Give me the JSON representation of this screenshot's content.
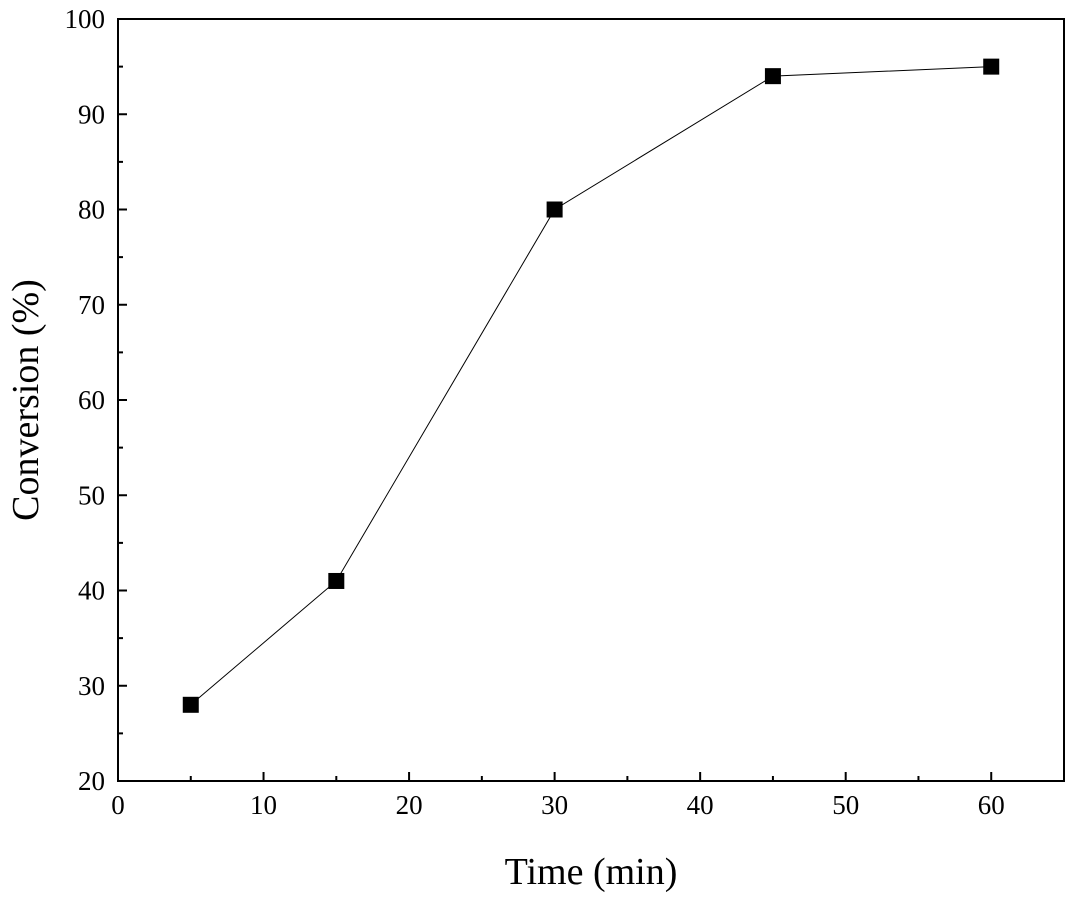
{
  "chart_data": {
    "type": "line",
    "title": "",
    "xlabel": "Time (min)",
    "ylabel": "Conversion (%)",
    "xlim": [
      0,
      65
    ],
    "ylim": [
      20,
      100
    ],
    "x_ticks": [
      0,
      10,
      20,
      30,
      40,
      50,
      60
    ],
    "x_minor_ticks": [
      5,
      15,
      25,
      35,
      45,
      55
    ],
    "y_ticks": [
      20,
      30,
      40,
      50,
      60,
      70,
      80,
      90,
      100
    ],
    "y_minor_ticks": [
      25,
      35,
      45,
      55,
      65,
      75,
      85,
      95
    ],
    "grid": false,
    "series": [
      {
        "name": "Conversion",
        "marker": "square",
        "color": "#000000",
        "x": [
          5,
          15,
          30,
          45,
          60
        ],
        "y": [
          28,
          41,
          80,
          94,
          95
        ]
      }
    ]
  }
}
